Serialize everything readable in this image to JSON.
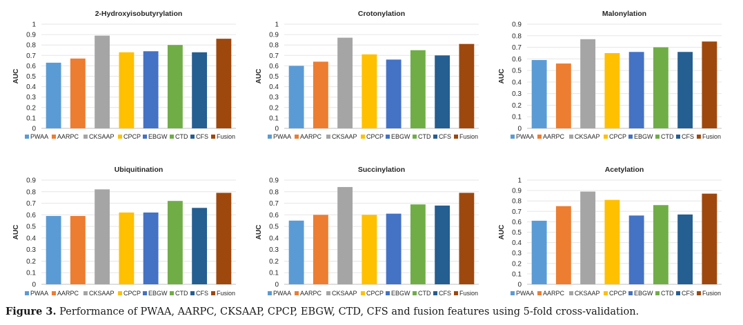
{
  "figure": {
    "caption_label": "Figure 3.",
    "caption_text": " Performance of PWAA, AARPC, CKSAAP, CPCP, EBGW, CTD, CFS and fusion features using 5-fold cross-validation."
  },
  "series_colors": {
    "PWAA": "#5B9BD5",
    "AARPC": "#ED7D31",
    "CKSAAP": "#A5A5A5",
    "CPCP": "#FFC000",
    "EBGW": "#4472C4",
    "CTD": "#70AD47",
    "CFS": "#255E91",
    "Fusion": "#9E480E"
  },
  "chart_data": [
    {
      "type": "bar",
      "title": "2-Hydroxyisobutyrylation",
      "ylabel": "AUC",
      "categories": [
        "PWAA",
        "AARPC",
        "CKSAAP",
        "CPCP",
        "EBGW",
        "CTD",
        "CFS",
        "Fusion"
      ],
      "values": [
        0.63,
        0.67,
        0.89,
        0.73,
        0.74,
        0.8,
        0.73,
        0.86
      ],
      "ylim": [
        0,
        1
      ],
      "yticks": [
        "0",
        "0.1",
        "0.2",
        "0.3",
        "0.4",
        "0.5",
        "0.6",
        "0.7",
        "0.8",
        "0.9",
        "1"
      ],
      "legend": "bottom"
    },
    {
      "type": "bar",
      "title": "Crotonylation",
      "ylabel": "AUC",
      "categories": [
        "PWAA",
        "AARPC",
        "CKSAAP",
        "CPCP",
        "EBGW",
        "CTD",
        "CFS",
        "Fusion"
      ],
      "values": [
        0.6,
        0.64,
        0.87,
        0.71,
        0.66,
        0.75,
        0.7,
        0.81
      ],
      "ylim": [
        0,
        1
      ],
      "yticks": [
        "0",
        "0.1",
        "0.2",
        "0.3",
        "0.4",
        "0.5",
        "0.6",
        "0.7",
        "0.8",
        "0.9",
        "1"
      ],
      "legend": "bottom"
    },
    {
      "type": "bar",
      "title": "Malonylation",
      "ylabel": "AUC",
      "categories": [
        "PWAA",
        "AARPC",
        "CKSAAP",
        "CPCP",
        "EBGW",
        "CTD",
        "CFS",
        "Fusion"
      ],
      "values": [
        0.59,
        0.56,
        0.77,
        0.65,
        0.66,
        0.7,
        0.66,
        0.75
      ],
      "ylim": [
        0,
        0.9
      ],
      "yticks": [
        "0",
        "0.1",
        "0.2",
        "0.3",
        "0.4",
        "0.5",
        "0.6",
        "0.7",
        "0.8",
        "0.9"
      ],
      "legend": "bottom"
    },
    {
      "type": "bar",
      "title": "Ubiquitination",
      "ylabel": "AUC",
      "categories": [
        "PWAA",
        "AARPC",
        "CKSAAP",
        "CPCP",
        "EBGW",
        "CTD",
        "CFS",
        "Fusion"
      ],
      "values": [
        0.59,
        0.59,
        0.82,
        0.62,
        0.62,
        0.72,
        0.66,
        0.79
      ],
      "ylim": [
        0,
        0.9
      ],
      "yticks": [
        "0",
        "0.1",
        "0.2",
        "0.3",
        "0.4",
        "0.5",
        "0.6",
        "0.7",
        "0.8",
        "0.9"
      ],
      "legend": "bottom"
    },
    {
      "type": "bar",
      "title": "Succinylation",
      "ylabel": "AUC",
      "categories": [
        "PWAA",
        "AARPC",
        "CKSAAP",
        "CPCP",
        "EBGW",
        "CTD",
        "CFS",
        "Fusion"
      ],
      "values": [
        0.55,
        0.6,
        0.84,
        0.6,
        0.61,
        0.69,
        0.68,
        0.79
      ],
      "ylim": [
        0,
        0.9
      ],
      "yticks": [
        "0",
        "0.1",
        "0.2",
        "0.3",
        "0.4",
        "0.5",
        "0.6",
        "0.7",
        "0.8",
        "0.9"
      ],
      "legend": "bottom"
    },
    {
      "type": "bar",
      "title": "Acetylation",
      "ylabel": "AUC",
      "categories": [
        "PWAA",
        "AARPC",
        "CKSAAP",
        "CPCP",
        "EBGW",
        "CTD",
        "CFS",
        "Fusion"
      ],
      "values": [
        0.61,
        0.75,
        0.89,
        0.81,
        0.66,
        0.76,
        0.67,
        0.87
      ],
      "ylim": [
        0,
        1
      ],
      "yticks": [
        "0",
        "0.1",
        "0.2",
        "0.3",
        "0.4",
        "0.5",
        "0.6",
        "0.7",
        "0.8",
        "0.9",
        "1"
      ],
      "legend": "bottom"
    }
  ]
}
